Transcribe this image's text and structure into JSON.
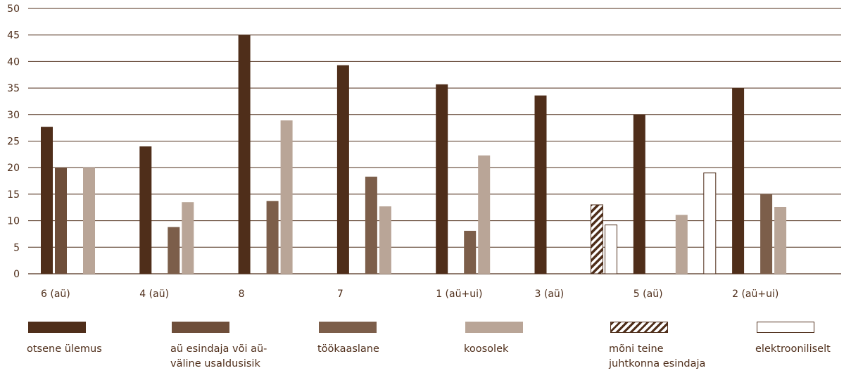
{
  "chart_data": {
    "type": "bar",
    "categories": [
      "6 (aü)",
      "4 (aü)",
      "8",
      "7",
      "1 (aü+ui)",
      "3 (aü)",
      "5 (aü)",
      "2 (aü+ui)"
    ],
    "ylim": [
      0,
      50
    ],
    "yticks": [
      0,
      5,
      10,
      15,
      20,
      25,
      30,
      35,
      40,
      45,
      50
    ],
    "grid": true,
    "legend_position": "bottom",
    "series": [
      {
        "name": "otsene ülemus",
        "color": "#4f2e1a",
        "pattern": "solid",
        "values": [
          27.7,
          24,
          45,
          39.3,
          35.7,
          33.6,
          30,
          35
        ]
      },
      {
        "name": "aü esindaja või aü-väline usaldusisik",
        "color": "#6e4e3a",
        "pattern": "solid",
        "values": [
          20,
          null,
          null,
          null,
          null,
          null,
          null,
          null
        ]
      },
      {
        "name": "töökaaslane",
        "color": "#7c5e4a",
        "pattern": "solid",
        "values": [
          null,
          8.8,
          13.7,
          18.3,
          8.1,
          null,
          null,
          15
        ]
      },
      {
        "name": "koosolek",
        "color": "#b9a597",
        "pattern": "solid",
        "values": [
          20,
          13.5,
          28.9,
          12.7,
          22.3,
          null,
          11.1,
          12.6
        ]
      },
      {
        "name": "mõni teine juhtkonna esindaja",
        "color": "#4f2e1a",
        "pattern": "hatched",
        "values": [
          null,
          null,
          null,
          null,
          null,
          13,
          null,
          null
        ]
      },
      {
        "name": "elektrooniliselt",
        "color": "#4f2e1a",
        "pattern": "outline",
        "values": [
          null,
          null,
          null,
          null,
          null,
          9.2,
          19,
          null
        ]
      }
    ],
    "legend": [
      {
        "series": 0,
        "label_lines": [
          "otsene ülemus"
        ]
      },
      {
        "series": 1,
        "label_lines": [
          "aü esindaja või aü-",
          "väline usaldusisik"
        ]
      },
      {
        "series": 2,
        "label_lines": [
          "töökaaslane"
        ]
      },
      {
        "series": 3,
        "label_lines": [
          "koosolek"
        ]
      },
      {
        "series": 4,
        "label_lines": [
          "mõni teine",
          "juhtkonna esindaja"
        ]
      },
      {
        "series": 5,
        "label_lines": [
          "elektrooniliselt"
        ]
      }
    ]
  }
}
